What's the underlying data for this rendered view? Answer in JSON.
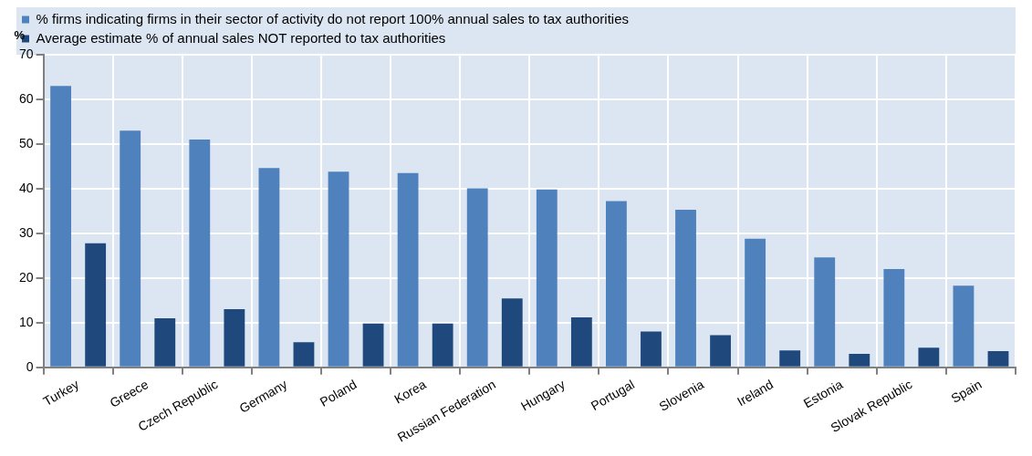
{
  "chart_data": {
    "type": "bar",
    "ylabel": "%",
    "categories": [
      "Turkey",
      "Greece",
      "Czech Republic",
      "Germany",
      "Poland",
      "Korea",
      "Russian Federation",
      "Hungary",
      "Portugal",
      "Slovenia",
      "Ireland",
      "Estonia",
      "Slovak Republic",
      "Spain"
    ],
    "series": [
      {
        "name": "% firms indicating firms in their sector of activity do not report 100% annual sales to tax authorities",
        "color": "#4f81bd",
        "values": [
          63,
          53,
          51,
          44.6,
          43.8,
          43.5,
          40.1,
          39.8,
          37.2,
          35.3,
          28.8,
          24.6,
          22,
          18.3
        ]
      },
      {
        "name": "Average estimate % of annual sales NOT reported to tax authorities",
        "color": "#1f497d",
        "values": [
          27.8,
          11,
          13,
          5.6,
          9.8,
          9.8,
          15.4,
          11.2,
          8,
          7.2,
          3.8,
          3,
          4.4,
          3.6
        ]
      }
    ],
    "ylim": [
      0,
      70
    ],
    "yticks": [
      0,
      10,
      20,
      30,
      40,
      50,
      60,
      70
    ],
    "grid": true,
    "legend": "top"
  }
}
